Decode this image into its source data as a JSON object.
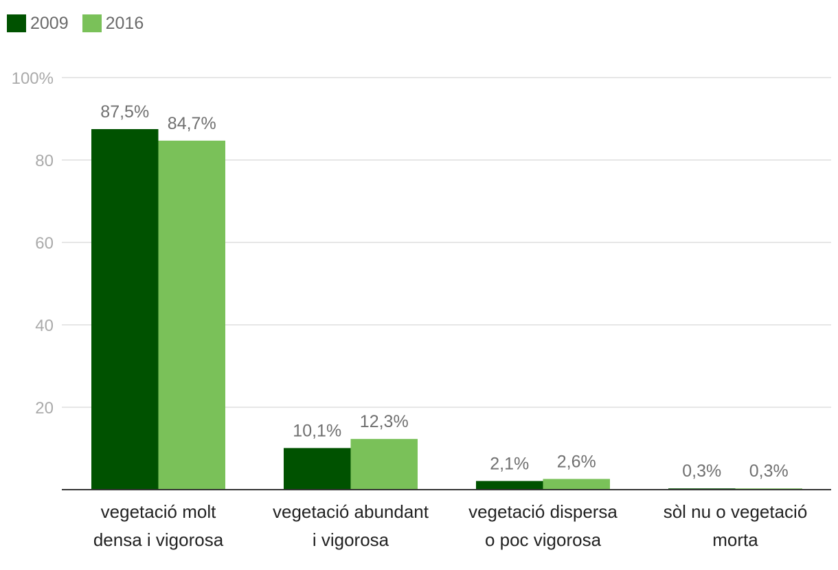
{
  "colors": {
    "series_2009": "#005200",
    "series_2016": "#7ac159",
    "grid": "#dddddd",
    "axis": "#333333"
  },
  "legend": {
    "items": [
      {
        "label": "2009"
      },
      {
        "label": "2016"
      }
    ],
    "placement": "top-left"
  },
  "chart_data": {
    "type": "bar",
    "title": "",
    "xlabel": "",
    "ylabel": "",
    "ylim": [
      0,
      100
    ],
    "y_ticks": [
      "",
      "20",
      "40",
      "60",
      "80",
      "100%"
    ],
    "grid": true,
    "categories": [
      [
        "vegetació molt",
        "densa i vigorosa"
      ],
      [
        "vegetació abundant",
        "i vigorosa"
      ],
      [
        "vegetació dispersa",
        "o poc vigorosa"
      ],
      [
        "sòl nu o vegetació",
        "morta"
      ]
    ],
    "series": [
      {
        "name": "2009",
        "values": [
          87.5,
          10.1,
          2.1,
          0.3
        ],
        "labels": [
          "87,5%",
          "10,1%",
          "2,1%",
          "0,3%"
        ]
      },
      {
        "name": "2016",
        "values": [
          84.7,
          12.3,
          2.6,
          0.3
        ],
        "labels": [
          "84,7%",
          "12,3%",
          "2,6%",
          "0,3%"
        ]
      }
    ]
  }
}
